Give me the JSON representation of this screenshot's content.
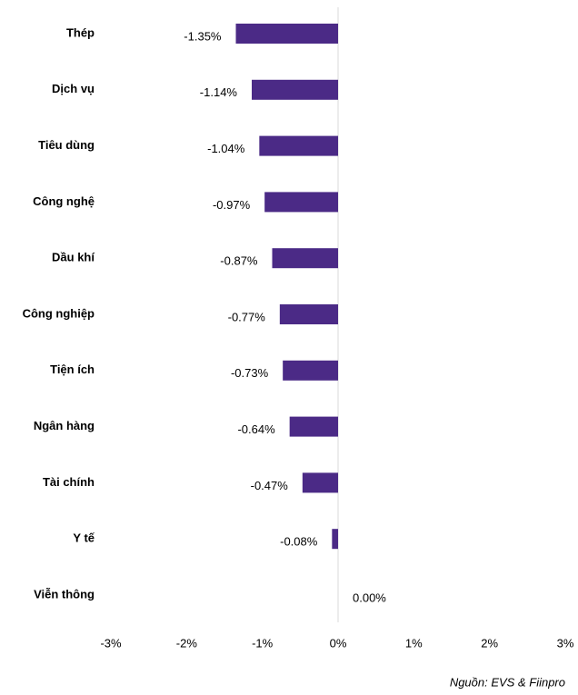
{
  "chart_data": {
    "type": "bar",
    "orientation": "horizontal",
    "categories": [
      "Thép",
      "Dịch vụ",
      "Tiêu dùng",
      "Công nghệ",
      "Dầu khí",
      "Công nghiệp",
      "Tiện ích",
      "Ngân hàng",
      "Tài chính",
      "Y tế",
      "Viễn thông"
    ],
    "values": [
      -1.35,
      -1.14,
      -1.04,
      -0.97,
      -0.87,
      -0.77,
      -0.73,
      -0.64,
      -0.47,
      -0.08,
      0.0
    ],
    "value_labels": [
      "-1.35%",
      "-1.14%",
      "-1.04%",
      "-0.97%",
      "-0.87%",
      "-0.77%",
      "-0.73%",
      "-0.64%",
      "-0.47%",
      "-0.08%",
      "0.00%"
    ],
    "color": "#4b2a86",
    "xlim": [
      -3,
      3
    ],
    "xticks": [
      {
        "value": -3,
        "label": "-3%"
      },
      {
        "value": -2,
        "label": "-2%"
      },
      {
        "value": -1,
        "label": "-1%"
      },
      {
        "value": 0,
        "label": "0%"
      },
      {
        "value": 1,
        "label": "1%"
      },
      {
        "value": 2,
        "label": "2%"
      },
      {
        "value": 3,
        "label": "3%"
      }
    ],
    "source": "Nguồn: EVS & Fiinpro"
  }
}
